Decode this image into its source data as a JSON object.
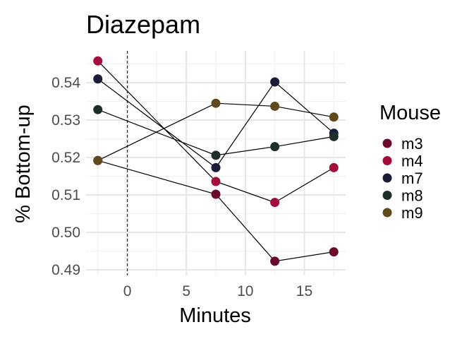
{
  "chart_data": {
    "type": "line",
    "title": "Diazepam",
    "xlabel": "Minutes",
    "ylabel": "% Bottom-up",
    "xlim": [
      -3.5,
      18.5
    ],
    "ylim": [
      0.4885,
      0.5485
    ],
    "x_ticks": [
      0,
      5,
      10,
      15
    ],
    "x_tick_labels": [
      "0",
      "5",
      "10",
      "15"
    ],
    "y_ticks": [
      0.49,
      0.5,
      0.51,
      0.52,
      0.53,
      0.54
    ],
    "y_tick_labels": [
      "0.49",
      "0.50",
      "0.51",
      "0.52",
      "0.53",
      "0.54"
    ],
    "grid": true,
    "reference_line": {
      "x": 0,
      "style": "dashed"
    },
    "legend": {
      "title": "Mouse",
      "position": "right"
    },
    "series": [
      {
        "name": "m3",
        "color": "#6b0a2e",
        "x": [
          -2.5,
          7.5,
          12.5,
          17.5
        ],
        "y": [
          0.5192,
          0.5102,
          0.4923,
          0.4948
        ]
      },
      {
        "name": "m4",
        "color": "#a30d3c",
        "x": [
          -2.5,
          7.5,
          12.5,
          17.5
        ],
        "y": [
          0.5458,
          0.5136,
          0.508,
          0.5173
        ]
      },
      {
        "name": "m7",
        "color": "#1b1b3a",
        "x": [
          -2.5,
          7.5,
          12.5,
          17.5
        ],
        "y": [
          0.541,
          0.5173,
          0.5402,
          0.5265
        ]
      },
      {
        "name": "m8",
        "color": "#1e2e2a",
        "x": [
          -2.5,
          7.5,
          12.5,
          17.5
        ],
        "y": [
          0.5328,
          0.5206,
          0.5229,
          0.5256
        ]
      },
      {
        "name": "m9",
        "color": "#5e4a1c",
        "x": [
          -2.5,
          7.5,
          12.5,
          17.5
        ],
        "y": [
          0.5192,
          0.5345,
          0.5337,
          0.5308
        ]
      }
    ]
  }
}
